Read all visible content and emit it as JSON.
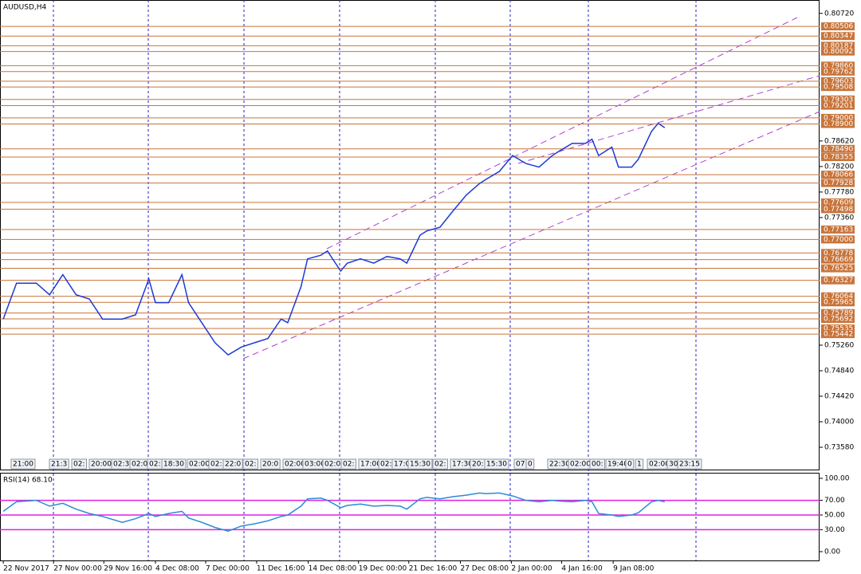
{
  "chart_data": [
    {
      "type": "line",
      "title": "AUDUSD,H4",
      "color": "#1c3ad6",
      "x": [
        0,
        2,
        5,
        7,
        9,
        11,
        13,
        15,
        18,
        20,
        22,
        23,
        25,
        27,
        28,
        30,
        32,
        34,
        36,
        38,
        40,
        42,
        43,
        45,
        46,
        48,
        49,
        51,
        52,
        54,
        56,
        58,
        60,
        61,
        63,
        64,
        66,
        68,
        70,
        72,
        73,
        75,
        77,
        79,
        81,
        83,
        84,
        86,
        88,
        89,
        90,
        92,
        93,
        95,
        96,
        98,
        99,
        100
      ],
      "values": [
        0.7569,
        0.7628,
        0.7628,
        0.7609,
        0.7642,
        0.7609,
        0.7602,
        0.7569,
        0.7569,
        0.7576,
        0.7635,
        0.7596,
        0.7596,
        0.7642,
        0.7596,
        0.7563,
        0.753,
        0.751,
        0.7523,
        0.753,
        0.7537,
        0.7569,
        0.7563,
        0.7622,
        0.7668,
        0.7674,
        0.7681,
        0.7648,
        0.7661,
        0.7668,
        0.7661,
        0.7672,
        0.7668,
        0.7661,
        0.7707,
        0.7714,
        0.772,
        0.7747,
        0.7773,
        0.7792,
        0.7799,
        0.7812,
        0.7838,
        0.7825,
        0.7819,
        0.7838,
        0.7845,
        0.7858,
        0.7858,
        0.7865,
        0.7838,
        0.7852,
        0.7819,
        0.7819,
        0.7832,
        0.7878,
        0.7891,
        0.7884
      ],
      "xlim": [
        -0.5,
        123.4
      ],
      "ylim": [
        0.732,
        0.8094
      ],
      "yticks": [
        {
          "value": 0.8072,
          "label": "0.80720"
        },
        {
          "value": 0.7862,
          "label": "0.78620"
        },
        {
          "value": 0.782,
          "label": "0.78200"
        },
        {
          "value": 0.7778,
          "label": "0.77780"
        },
        {
          "value": 0.7736,
          "label": "0.77360"
        },
        {
          "value": 0.7526,
          "label": "0.75260"
        },
        {
          "value": 0.7484,
          "label": "0.74840"
        },
        {
          "value": 0.7442,
          "label": "0.74420"
        },
        {
          "value": 0.74,
          "label": "0.74000"
        },
        {
          "value": 0.7358,
          "label": "0.73580"
        }
      ],
      "level_color": "#c8743a",
      "levels": [
        0.80506,
        0.80347,
        0.80187,
        0.80092,
        {
          "value": 0.7986,
          "label": "0.79860"
        },
        0.79762,
        0.79603,
        0.79508,
        0.79303,
        0.79201,
        {
          "value": 0.79,
          "label": "0.79000"
        },
        {
          "value": 0.789,
          "label": "0.78900"
        },
        {
          "value": 0.7849,
          "label": "0.78490"
        },
        0.78355,
        0.78066,
        0.77928,
        0.77609,
        0.77498,
        0.77163,
        {
          "value": 0.77,
          "label": "0.77000"
        },
        0.76778,
        0.76669,
        0.76525,
        0.76327,
        0.76064,
        0.75965,
        0.75789,
        0.75692,
        0.75535,
        0.75442
      ],
      "xticks": [
        {
          "value": 0,
          "label": "22 Nov 2017"
        },
        {
          "value": 7.6,
          "label": "27 Nov 00:00"
        },
        {
          "value": 15.2,
          "label": "29 Nov 16:00"
        },
        {
          "value": 23,
          "label": "4 Dec 08:00"
        },
        {
          "value": 30.6,
          "label": "7 Dec 00:00"
        },
        {
          "value": 38.3,
          "label": "11 Dec 16:00"
        },
        {
          "value": 46.1,
          "label": "14 Dec 08:00"
        },
        {
          "value": 53.7,
          "label": "19 Dec 00:00"
        },
        {
          "value": 61.3,
          "label": "21 Dec 16:00"
        },
        {
          "value": 69.1,
          "label": "27 Dec 08:00"
        },
        {
          "value": 76.8,
          "label": "2 Jan 00:00"
        },
        {
          "value": 84.4,
          "label": "4 Jan 16:00"
        },
        {
          "value": 92.2,
          "label": "9 Jan 08:00"
        }
      ],
      "session_labels": [
        "21:00",
        "21:3",
        "02:",
        "20:00",
        "02:30",
        "02:0",
        "02:",
        "18:30",
        "02:00",
        "02:",
        "22:0",
        "02:",
        "20:0",
        "02:00",
        "03:00",
        "02:00",
        "02:",
        "17:00",
        "02:",
        "17:0",
        "15:30",
        "02:",
        "17:30",
        "20:",
        "15:30",
        "07",
        "0",
        "22:30",
        "02:00",
        "00:",
        "19:40",
        "0",
        "1",
        "02:00",
        "30",
        "23:15"
      ]
    },
    {
      "type": "line",
      "title": "RSI(14) 68.10",
      "color": "#2a8bd8",
      "x": [
        0,
        2,
        5,
        7,
        9,
        11,
        13,
        15,
        18,
        20,
        22,
        23,
        25,
        27,
        28,
        30,
        32,
        34,
        36,
        38,
        40,
        42,
        43,
        45,
        46,
        48,
        49,
        51,
        52,
        54,
        56,
        58,
        60,
        61,
        63,
        64,
        66,
        68,
        70,
        72,
        73,
        75,
        77,
        79,
        81,
        83,
        84,
        86,
        88,
        89,
        90,
        92,
        93,
        95,
        96,
        98,
        99,
        100
      ],
      "values": [
        55,
        68,
        70,
        62,
        66,
        58,
        52,
        48,
        40,
        45,
        52,
        48,
        52,
        55,
        46,
        40,
        33,
        28,
        35,
        38,
        42,
        48,
        50,
        62,
        72,
        73,
        70,
        60,
        63,
        65,
        62,
        63,
        62,
        58,
        72,
        74,
        72,
        75,
        77,
        80,
        79,
        80,
        76,
        70,
        68,
        70,
        69,
        68,
        70,
        68,
        52,
        50,
        48,
        50,
        53,
        68,
        70,
        68
      ],
      "xlim": [
        -0.5,
        123.4
      ],
      "ylim": [
        -12,
        107.6
      ],
      "yticks": [
        {
          "value": 100,
          "label": "100.00"
        },
        {
          "value": 70,
          "label": "70.00"
        },
        {
          "value": 50,
          "label": "50.00"
        },
        {
          "value": 30,
          "label": "30.00"
        },
        {
          "value": 0,
          "label": "0.00"
        }
      ],
      "level_color": "#e020e0",
      "levels": [
        70,
        50,
        30
      ]
    }
  ]
}
